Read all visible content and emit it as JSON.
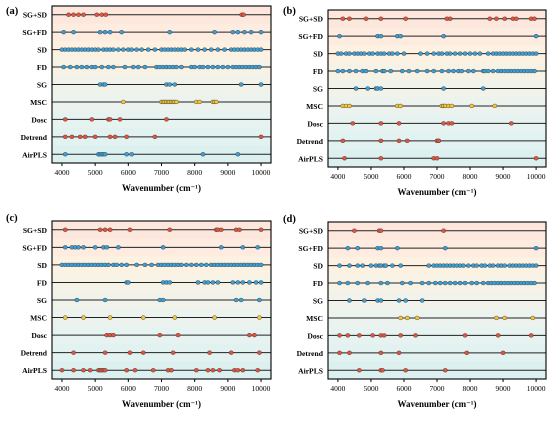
{
  "figure": {
    "xlabel": "Wavenumber (cm⁻¹)",
    "tick_labels": [
      "4000",
      "5000",
      "6000",
      "7000",
      "8000",
      "9000",
      "10000"
    ]
  },
  "band_colors": [
    "#fde7dc",
    "#fdf1e2",
    "#f1f3ea",
    "#e7f3f1",
    "#dcf0f0"
  ],
  "series_colors": {
    "red": "#e5533c",
    "blue": "#3b9fd6",
    "yellow": "#f6c531"
  },
  "chart_data": [
    {
      "panel": "(a)",
      "type": "scatter",
      "xlim": [
        3700,
        10300
      ],
      "xticks": [
        4000,
        5000,
        6000,
        7000,
        8000,
        9000,
        10000
      ],
      "categories": [
        "SG+SD",
        "SG+FD",
        "SD",
        "FD",
        "SG",
        "MSC",
        "Dosc",
        "Detrend",
        "AirPLS"
      ],
      "colors": [
        "red",
        "blue",
        "blue",
        "blue",
        "blue",
        "yellow",
        "red",
        "red",
        "blue"
      ],
      "points": [
        [
          4200,
          4350,
          4500,
          4650,
          5050,
          5200,
          5320,
          9420,
          9470
        ],
        [
          4050,
          4350,
          5150,
          5300,
          5450,
          5800,
          7250,
          8600,
          9150,
          9300,
          9500,
          9700,
          10000
        ],
        [
          4000,
          4100,
          4200,
          4300,
          4400,
          4500,
          4600,
          4700,
          4800,
          4900,
          5000,
          5100,
          5250,
          5350,
          5450,
          5550,
          5700,
          5850,
          6000,
          6100,
          6250,
          6400,
          6600,
          6800,
          7000,
          7100,
          7200,
          7300,
          7400,
          7500,
          7600,
          7700,
          7900,
          8100,
          8300,
          8500,
          8700,
          8900,
          9100,
          9200,
          9300,
          9400,
          9500,
          9600,
          9700,
          9800,
          9900,
          10000
        ],
        [
          4050,
          4250,
          4450,
          4600,
          4750,
          4900,
          5000,
          5200,
          5400,
          5550,
          5900,
          6150,
          6300,
          6500,
          6850,
          6950,
          7050,
          7150,
          7250,
          7350,
          7450,
          7600,
          7900,
          8000,
          8150,
          8250,
          8400,
          8550,
          8700,
          8850,
          9000,
          9150,
          9250,
          9350,
          9450,
          9550,
          9650,
          9750,
          9850,
          9950
        ],
        [
          5150,
          5250,
          5300,
          7150,
          7250,
          7400,
          9400,
          10000
        ],
        [
          5850,
          7000,
          7050,
          7100,
          7150,
          7200,
          7250,
          7300,
          7350,
          7400,
          7450,
          8050,
          8150,
          8550,
          8600,
          8650
        ],
        [
          4100,
          4900,
          5400,
          5450,
          5750,
          7150
        ],
        [
          4100,
          4300,
          4550,
          4700,
          5000,
          5450,
          5600,
          5950,
          6800,
          10000
        ],
        [
          4100,
          5100,
          5150,
          5200,
          5250,
          5300,
          5950,
          6100,
          8250,
          9300
        ]
      ]
    },
    {
      "panel": "(b)",
      "type": "scatter",
      "xlim": [
        3700,
        10300
      ],
      "xticks": [
        4000,
        5000,
        6000,
        7000,
        8000,
        9000,
        10000
      ],
      "categories": [
        "SG+SD",
        "SG+FD",
        "SD",
        "FD",
        "SG",
        "MSC",
        "Dosc",
        "Detrend",
        "AirPLS"
      ],
      "colors": [
        "red",
        "blue",
        "blue",
        "blue",
        "blue",
        "yellow",
        "red",
        "red",
        "red"
      ],
      "points": [
        [
          4150,
          4350,
          4850,
          5300,
          6050,
          7300,
          7400,
          8600,
          8800,
          9050,
          9300,
          9400,
          9850,
          9950
        ],
        [
          4050,
          5200,
          5300,
          5800,
          5900,
          7200,
          10000
        ],
        [
          4000,
          4100,
          4250,
          4350,
          4500,
          4600,
          4700,
          4800,
          4950,
          5050,
          5200,
          5300,
          5400,
          5550,
          5650,
          5800,
          6000,
          6500,
          6700,
          6900,
          7050,
          7150,
          7300,
          7400,
          7550,
          7700,
          7850,
          8000,
          8150,
          8300,
          8550,
          8700,
          8800,
          8900,
          9000,
          9100,
          9200,
          9300,
          9400,
          9500,
          9600,
          9700,
          9800,
          9900,
          10000
        ],
        [
          4000,
          4150,
          4350,
          4550,
          4750,
          4850,
          5150,
          5350,
          5400,
          5600,
          5950,
          6150,
          6400,
          6700,
          6900,
          7150,
          7350,
          7500,
          7650,
          7750,
          7950,
          8100,
          8400,
          8450,
          8550,
          8700,
          8850,
          8950,
          9050,
          9150,
          9250,
          9350,
          9450,
          9550,
          9650,
          9750,
          9850,
          9950
        ],
        [
          4550,
          4900,
          5150,
          5200,
          5300,
          7200,
          8400
        ],
        [
          4150,
          4250,
          4350,
          5800,
          5900,
          7150,
          7200,
          7250,
          7350,
          7450,
          8050,
          8750
        ],
        [
          4450,
          5300,
          5850,
          7200,
          7350,
          7450,
          9250
        ],
        [
          4150,
          5300,
          5850,
          6100,
          7000,
          7050,
          7050
        ],
        [
          4200,
          5300,
          6900,
          7000,
          10000
        ]
      ]
    },
    {
      "panel": "(c)",
      "type": "scatter",
      "xlim": [
        3700,
        10300
      ],
      "xticks": [
        4000,
        5000,
        6000,
        7000,
        8000,
        9000,
        10000
      ],
      "categories": [
        "SG+SD",
        "SG+FD",
        "SD",
        "FD",
        "SG",
        "MSC",
        "Dosc",
        "Detrend",
        "AirPLS"
      ],
      "colors": [
        "red",
        "blue",
        "blue",
        "blue",
        "blue",
        "yellow",
        "red",
        "red",
        "red"
      ],
      "points": [
        [
          4100,
          5150,
          5300,
          5450,
          6050,
          7250,
          8650,
          8700,
          8800,
          9250,
          9350,
          10000
        ],
        [
          4100,
          4300,
          4400,
          4500,
          4650,
          5000,
          5250,
          5350,
          5700,
          7050,
          8800,
          9450,
          9900
        ],
        [
          4000,
          4100,
          4200,
          4300,
          4400,
          4500,
          4600,
          4700,
          4800,
          4900,
          5000,
          5100,
          5200,
          5300,
          5400,
          5550,
          5650,
          5800,
          5950,
          6250,
          6500,
          6700,
          6900,
          7000,
          7100,
          7200,
          7300,
          7400,
          7500,
          7600,
          7750,
          7900,
          8050,
          8200,
          8350,
          8500,
          8600,
          8700,
          8800,
          8900,
          9000,
          9100,
          9200,
          9300,
          9400,
          9500,
          9600,
          9700,
          9800,
          9900,
          10000
        ],
        [
          5950,
          6000,
          7050,
          7150,
          7250,
          8100,
          8300,
          8400,
          8550,
          8700,
          9150,
          9300,
          9450,
          9650,
          9850,
          10000
        ],
        [
          4450,
          5300,
          6950,
          7050,
          9250,
          9400,
          9950
        ],
        [
          4100,
          4650,
          5450,
          6450,
          7400,
          8600,
          9950
        ],
        [
          5350,
          5450,
          5550,
          6950,
          7500,
          9650,
          9800
        ],
        [
          4350,
          5300,
          6050,
          6450,
          7350,
          8450,
          9100,
          9950
        ],
        [
          4000,
          4350,
          4650,
          4850,
          5100,
          5150,
          5200,
          5250,
          5300,
          5950,
          6200,
          6750,
          7200,
          7300,
          8050,
          8400,
          8550,
          8750,
          9200,
          9300,
          9450,
          9900
        ]
      ]
    },
    {
      "panel": "(d)",
      "type": "scatter",
      "xlim": [
        3700,
        10300
      ],
      "xticks": [
        4000,
        5000,
        6000,
        7000,
        8000,
        9000,
        10000
      ],
      "categories": [
        "SG+SD",
        "SG+FD",
        "SD",
        "FD",
        "SG",
        "MSC",
        "Dosc",
        "Detrend",
        "AirPLS"
      ],
      "colors": [
        "red",
        "blue",
        "blue",
        "blue",
        "blue",
        "yellow",
        "red",
        "red",
        "red"
      ],
      "points": [
        [
          4500,
          5250,
          5300,
          7200
        ],
        [
          4300,
          4600,
          5200,
          5300,
          5800,
          7250,
          10000
        ],
        [
          4050,
          4350,
          4600,
          4750,
          5000,
          5150,
          5250,
          5300,
          5400,
          5450,
          5650,
          5900,
          6750,
          6900,
          7000,
          7100,
          7200,
          7300,
          7400,
          7500,
          7600,
          7700,
          7800,
          7950,
          8100,
          8200,
          8350,
          8450,
          8600,
          8700,
          8850,
          8950,
          9050,
          9200,
          9300,
          9400,
          9500,
          9600,
          9700,
          9800,
          9900,
          10000
        ],
        [
          4050,
          4300,
          4600,
          4900,
          5300,
          5500,
          5950,
          6200,
          6550,
          6750,
          6950,
          7100,
          7250,
          7400,
          7550,
          7700,
          7850,
          8050,
          8200,
          8400,
          8550,
          8650,
          8750,
          8850,
          8950,
          9050,
          9150,
          9250,
          9350,
          9450,
          9550,
          9650,
          9750,
          9850,
          9950
        ],
        [
          4350,
          4800,
          5200,
          5300,
          5850,
          6050,
          6550
        ],
        [
          5900,
          6100,
          6400,
          8800,
          9050,
          9900
        ],
        [
          4050,
          4300,
          4650,
          5050,
          5300,
          5400,
          5900,
          6350,
          7850,
          8850,
          9850
        ],
        [
          4050,
          4350,
          5300,
          5850,
          7900,
          9000
        ],
        [
          4650,
          5300,
          5350,
          6050,
          7250
        ]
      ]
    }
  ]
}
